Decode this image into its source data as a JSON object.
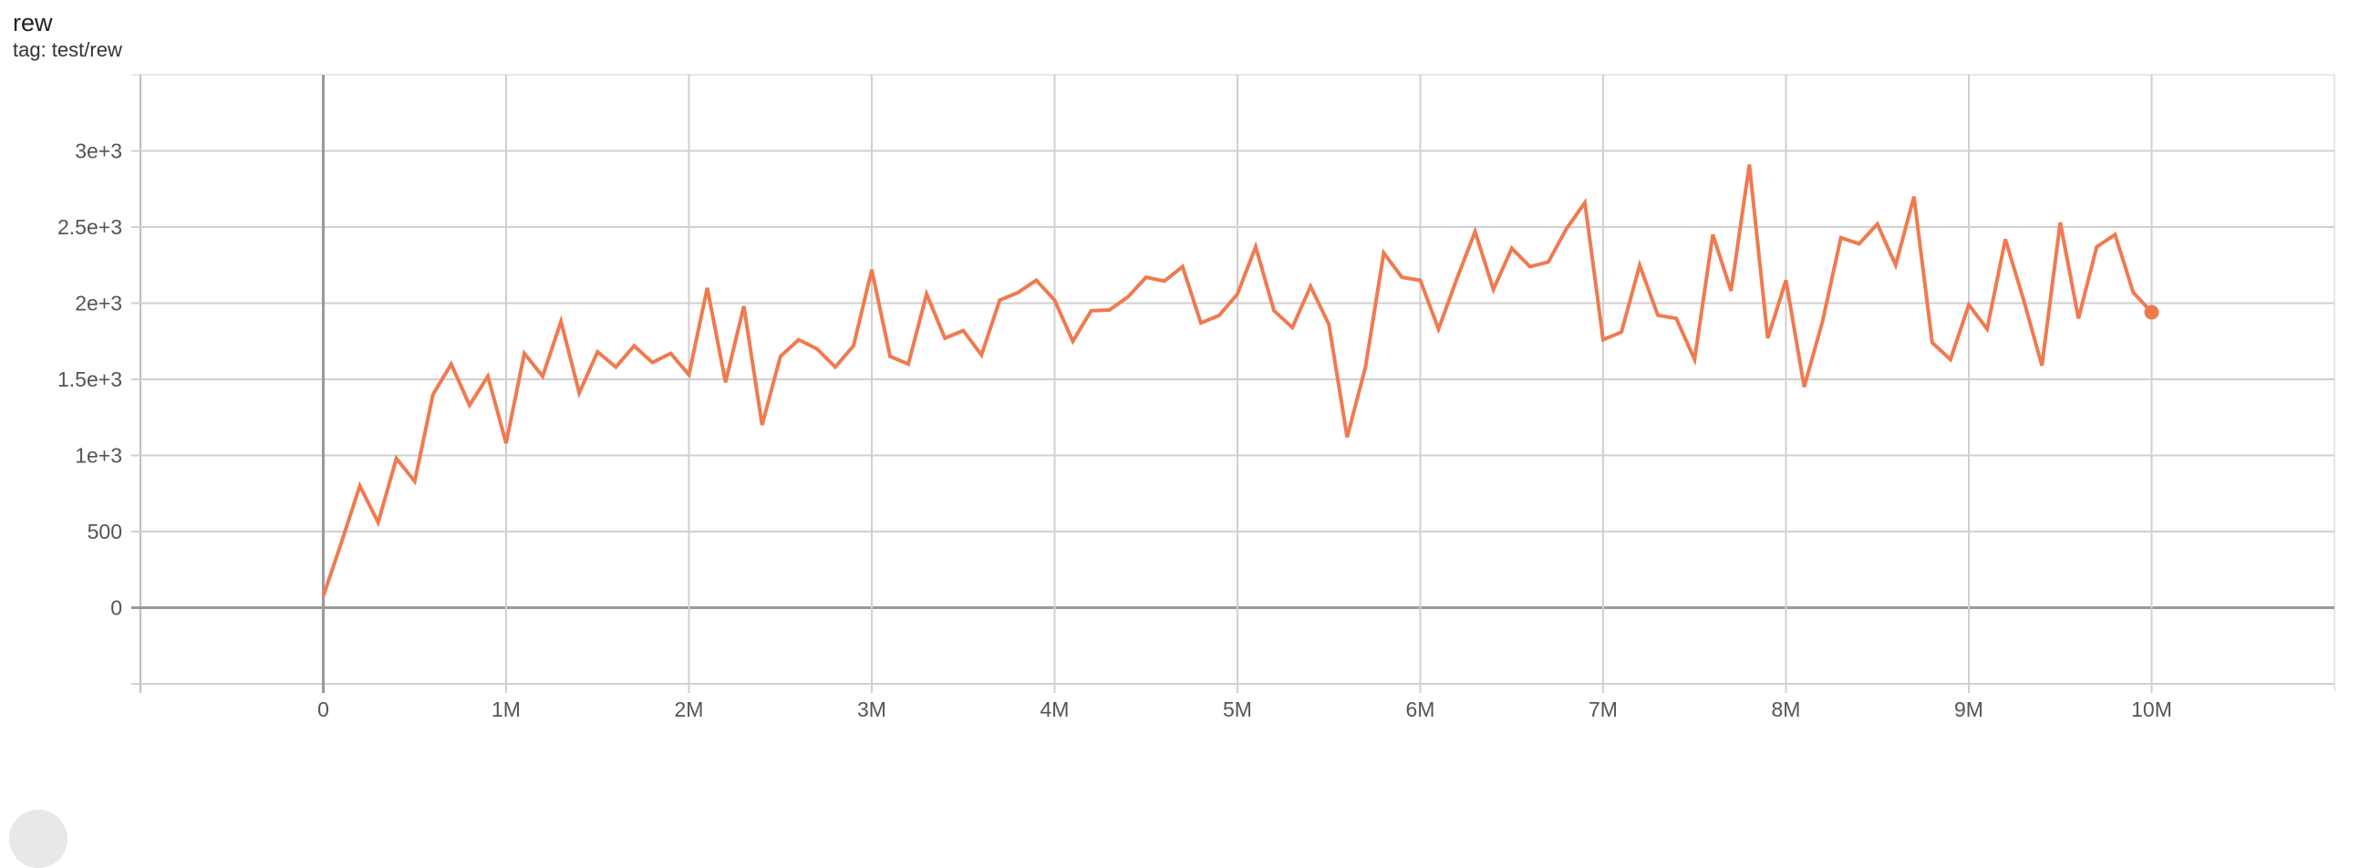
{
  "header": {
    "title": "rew",
    "subtitle": "tag: test/rew"
  },
  "colors": {
    "series": "#f07a4f",
    "grid": "#d0d0d0",
    "zero_axis": "#999999"
  },
  "chart_data": {
    "type": "line",
    "title": "rew",
    "subtitle": "tag: test/rew",
    "xlabel": "",
    "ylabel": "",
    "xlim": [
      -1000000,
      11000000
    ],
    "ylim": [
      -500,
      3500
    ],
    "grid": true,
    "x_ticks": [
      0,
      1000000,
      2000000,
      3000000,
      4000000,
      5000000,
      6000000,
      7000000,
      8000000,
      9000000,
      10000000
    ],
    "x_tick_labels": [
      "0",
      "1M",
      "2M",
      "3M",
      "4M",
      "5M",
      "6M",
      "7M",
      "8M",
      "9M",
      "10M"
    ],
    "y_ticks": [
      0,
      500,
      1000,
      1500,
      2000,
      2500,
      3000
    ],
    "y_tick_labels": [
      "0",
      "500",
      "1e+3",
      "1.5e+3",
      "2e+3",
      "2.5e+3",
      "3e+3"
    ],
    "x_step": 100000,
    "series": [
      {
        "color": "#f07a4f",
        "values": [
          75,
          430,
          800,
          560,
          980,
          830,
          1400,
          1600,
          1330,
          1520,
          1080,
          1670,
          1520,
          1880,
          1410,
          1680,
          1580,
          1720,
          1610,
          1670,
          1530,
          2100,
          1480,
          1980,
          1200,
          1650,
          1760,
          1700,
          1580,
          1720,
          2220,
          1650,
          1600,
          2060,
          1770,
          1820,
          1660,
          2020,
          2070,
          2150,
          2020,
          1750,
          1950,
          1955,
          2040,
          2170,
          2145,
          2240,
          1870,
          1920,
          2060,
          2370,
          1950,
          1840,
          2110,
          1860,
          1120,
          1580,
          2330,
          2170,
          2150,
          1830,
          2160,
          2470,
          2090,
          2360,
          2240,
          2270,
          2490,
          2660,
          1760,
          1810,
          2250,
          1920,
          1900,
          1630,
          2450,
          2080,
          2910,
          1770,
          2150,
          1450,
          1880,
          2430,
          2390,
          2520,
          2250,
          2700,
          1740,
          1630,
          1990,
          1830,
          2420,
          2020,
          1590,
          2530,
          1900,
          2370,
          2450,
          2070,
          1940
        ]
      }
    ]
  }
}
